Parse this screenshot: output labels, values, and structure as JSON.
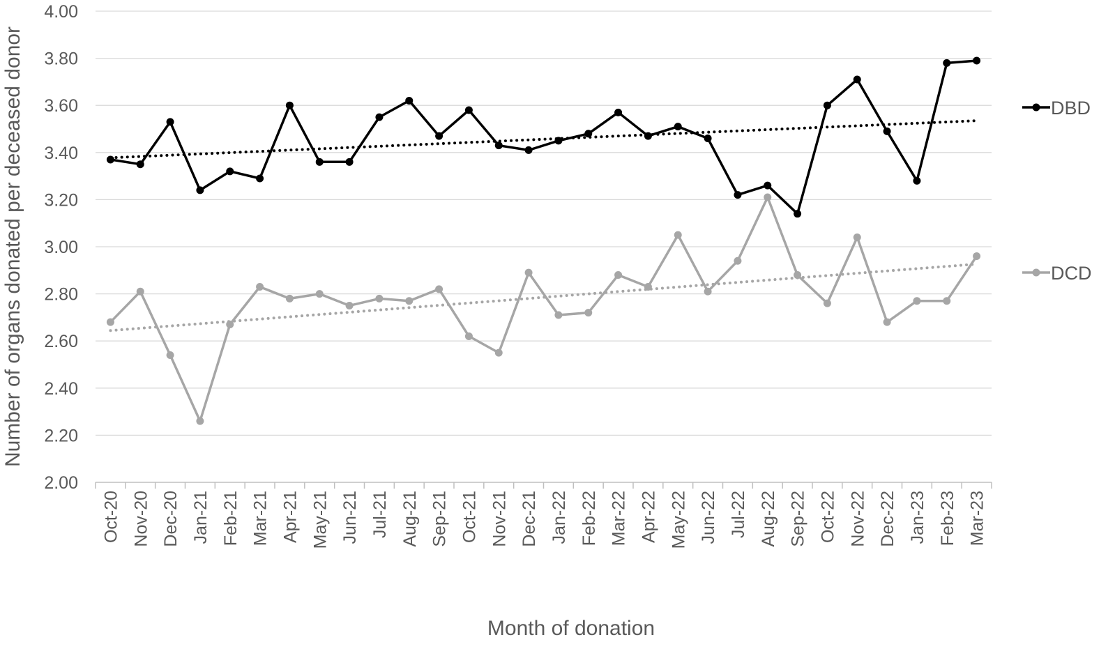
{
  "chart_data": {
    "type": "line",
    "title": "",
    "xlabel": "Month of donation",
    "ylabel": "Number of organs donated per deceased donor",
    "ylim": [
      2.0,
      4.0
    ],
    "yticks": [
      "2.00",
      "2.20",
      "2.40",
      "2.60",
      "2.80",
      "3.00",
      "3.20",
      "3.40",
      "3.60",
      "3.80",
      "4.00"
    ],
    "grid": true,
    "legend_position": "right",
    "categories": [
      "Oct-20",
      "Nov-20",
      "Dec-20",
      "Jan-21",
      "Feb-21",
      "Mar-21",
      "Apr-21",
      "May-21",
      "Jun-21",
      "Jul-21",
      "Aug-21",
      "Sep-21",
      "Oct-21",
      "Nov-21",
      "Dec-21",
      "Jan-22",
      "Feb-22",
      "Mar-22",
      "Apr-22",
      "May-22",
      "Jun-22",
      "Jul-22",
      "Aug-22",
      "Sep-22",
      "Oct-22",
      "Nov-22",
      "Dec-22",
      "Jan-23",
      "Feb-23",
      "Mar-23"
    ],
    "series": [
      {
        "name": "DBD",
        "color": "#000000",
        "values": [
          3.37,
          3.35,
          3.53,
          3.24,
          3.32,
          3.29,
          3.6,
          3.36,
          3.36,
          3.55,
          3.62,
          3.47,
          3.58,
          3.43,
          3.41,
          3.45,
          3.48,
          3.57,
          3.47,
          3.51,
          3.46,
          3.22,
          3.26,
          3.14,
          3.6,
          3.71,
          3.49,
          3.28,
          3.78,
          3.79
        ],
        "trendline": true
      },
      {
        "name": "DCD",
        "color": "#a6a6a6",
        "values": [
          2.68,
          2.81,
          2.54,
          2.26,
          2.67,
          2.83,
          2.78,
          2.8,
          2.75,
          2.78,
          2.77,
          2.82,
          2.62,
          2.55,
          2.89,
          2.71,
          2.72,
          2.88,
          2.83,
          3.05,
          2.81,
          2.94,
          3.21,
          2.88,
          2.76,
          3.04,
          2.68,
          2.77,
          2.77,
          2.96
        ],
        "trendline": true
      }
    ]
  }
}
